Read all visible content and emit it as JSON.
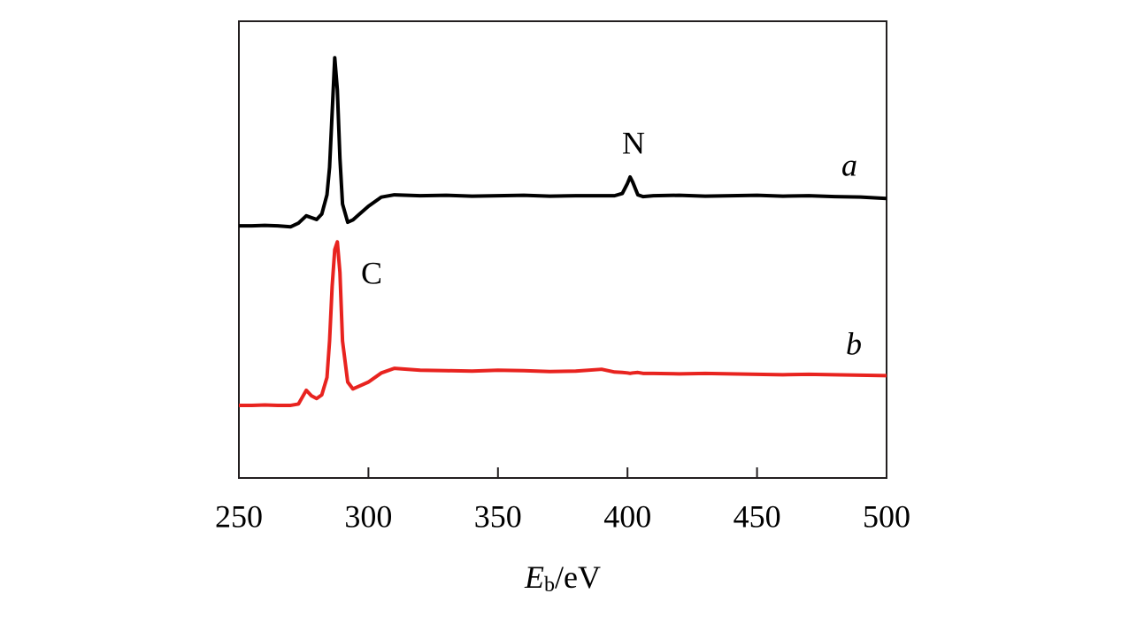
{
  "chart_data": {
    "type": "line",
    "x_label": {
      "symbol": "E",
      "subscript": "b",
      "unit": "/eV"
    },
    "x": [
      250,
      255,
      260,
      265,
      270,
      273,
      276,
      278,
      280,
      282,
      284,
      285,
      286,
      287,
      288,
      289,
      290,
      292,
      294,
      296,
      300,
      305,
      310,
      320,
      330,
      340,
      350,
      360,
      370,
      380,
      390,
      395,
      398,
      400,
      401,
      402,
      404,
      406,
      410,
      420,
      430,
      440,
      450,
      460,
      470,
      480,
      490,
      500
    ],
    "series": [
      {
        "name": "a",
        "color": "#000000",
        "values": [
          55.2,
          55.2,
          55.3,
          55.2,
          55.0,
          55.8,
          57.4,
          57.0,
          56.6,
          57.8,
          62,
          68,
          80,
          92,
          85,
          70,
          60,
          56,
          56.5,
          57.5,
          59.5,
          61.5,
          62.0,
          61.8,
          61.9,
          61.7,
          61.8,
          61.9,
          61.7,
          61.8,
          61.8,
          61.8,
          62.3,
          64.5,
          65.9,
          64.8,
          62,
          61.6,
          61.8,
          61.9,
          61.7,
          61.8,
          61.9,
          61.7,
          61.8,
          61.6,
          61.5,
          61.2
        ]
      },
      {
        "name": "b",
        "color": "#e8231f",
        "values": [
          15.9,
          15.9,
          16.0,
          15.9,
          15.9,
          16.2,
          19.2,
          18.0,
          17.4,
          18.2,
          22,
          30,
          42,
          50,
          51.7,
          45,
          30,
          21,
          19.5,
          20,
          21,
          23,
          24,
          23.6,
          23.5,
          23.4,
          23.6,
          23.5,
          23.3,
          23.4,
          23.8,
          23.2,
          23.1,
          23.0,
          22.9,
          23.0,
          23.1,
          22.9,
          22.9,
          22.8,
          22.9,
          22.8,
          22.7,
          22.6,
          22.7,
          22.6,
          22.5,
          22.4
        ]
      }
    ],
    "annotations": [
      "N",
      "a",
      "C",
      "b"
    ],
    "xlim": [
      250,
      500
    ],
    "ylim": [
      0,
      100
    ],
    "xticks": [
      250,
      300,
      350,
      400,
      450,
      500
    ]
  }
}
